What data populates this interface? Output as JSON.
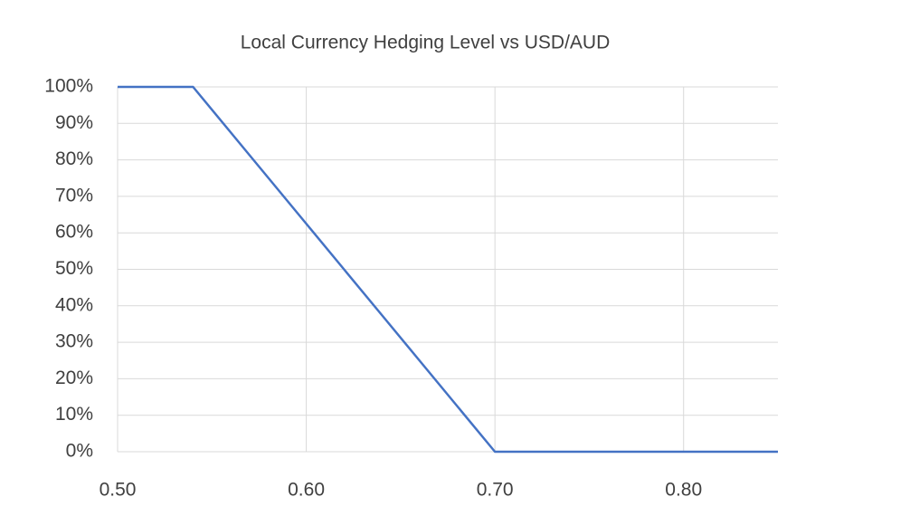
{
  "chart_data": {
    "type": "line",
    "title": "Local Currency Hedging Level vs USD/AUD",
    "x": [
      0.5,
      0.52,
      0.54,
      0.56,
      0.58,
      0.6,
      0.62,
      0.64,
      0.66,
      0.68,
      0.7,
      0.75,
      0.8,
      0.85
    ],
    "series": [
      {
        "name": "Hedging Level",
        "color": "#4472c4",
        "values": [
          100,
          100,
          100,
          87.5,
          75,
          62.5,
          50,
          37.5,
          25,
          12.5,
          0,
          0,
          0,
          0
        ]
      }
    ],
    "xlim": [
      0.5,
      0.85
    ],
    "xticks": [
      {
        "value": 0.5,
        "label": "0.50"
      },
      {
        "value": 0.6,
        "label": "0.60"
      },
      {
        "value": 0.7,
        "label": "0.70"
      },
      {
        "value": 0.8,
        "label": "0.80"
      }
    ],
    "ylim": [
      0,
      100
    ],
    "yticks": [
      {
        "value": 0,
        "label": "0%"
      },
      {
        "value": 10,
        "label": "10%"
      },
      {
        "value": 20,
        "label": "20%"
      },
      {
        "value": 30,
        "label": "30%"
      },
      {
        "value": 40,
        "label": "40%"
      },
      {
        "value": 50,
        "label": "50%"
      },
      {
        "value": 60,
        "label": "60%"
      },
      {
        "value": 70,
        "label": "70%"
      },
      {
        "value": 80,
        "label": "80%"
      },
      {
        "value": 90,
        "label": "90%"
      },
      {
        "value": 100,
        "label": "100%"
      }
    ],
    "grid": true
  }
}
